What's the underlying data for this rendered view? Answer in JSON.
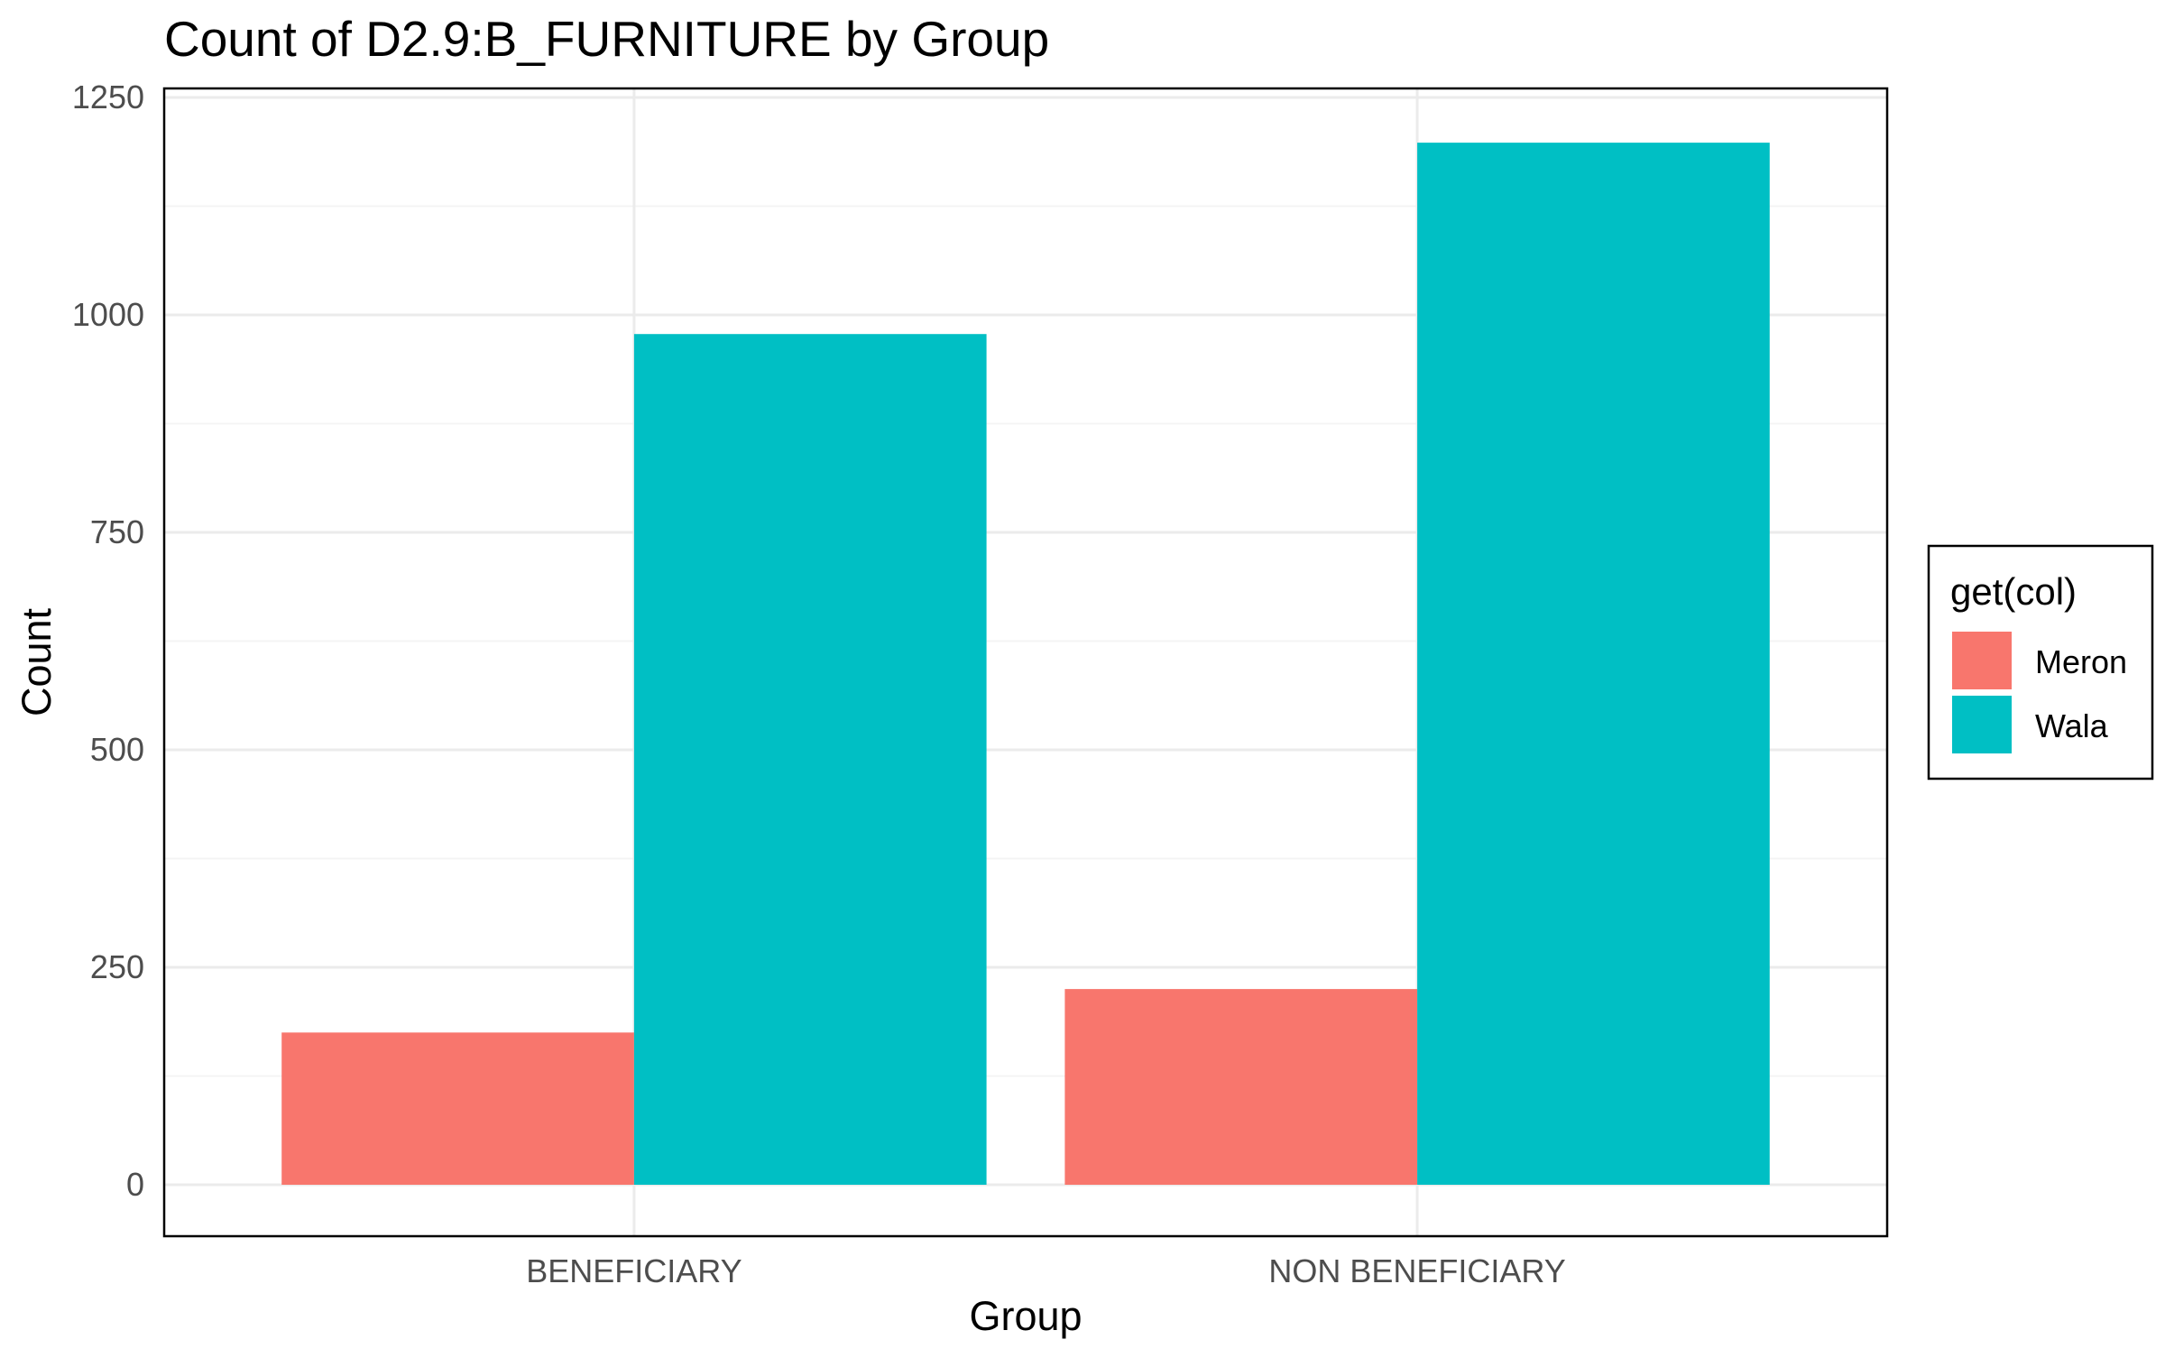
{
  "chart_data": {
    "type": "bar",
    "title": "Count of D2.9:B_FURNITURE by Group",
    "xlabel": "Group",
    "ylabel": "Count",
    "categories": [
      "BENEFICIARY",
      "NON BENEFICIARY"
    ],
    "series": [
      {
        "name": "Meron",
        "values": [
          175,
          225
        ],
        "color": "#F8766D"
      },
      {
        "name": "Wala",
        "values": [
          978,
          1198
        ],
        "color": "#00BFC4"
      }
    ],
    "ylim": [
      0,
      1250
    ],
    "yticks": [
      0,
      250,
      500,
      750,
      1000,
      1250
    ],
    "ytick_labels": [
      "0",
      "250",
      "500",
      "750",
      "1000",
      "1250"
    ],
    "grid": true,
    "legend": {
      "title": "get(col)",
      "position": "right"
    },
    "colors": {
      "background": "#ffffff",
      "grid_major": "#ebebeb",
      "grid_minor": "#f4f4f4",
      "panel_border": "#000000"
    }
  }
}
